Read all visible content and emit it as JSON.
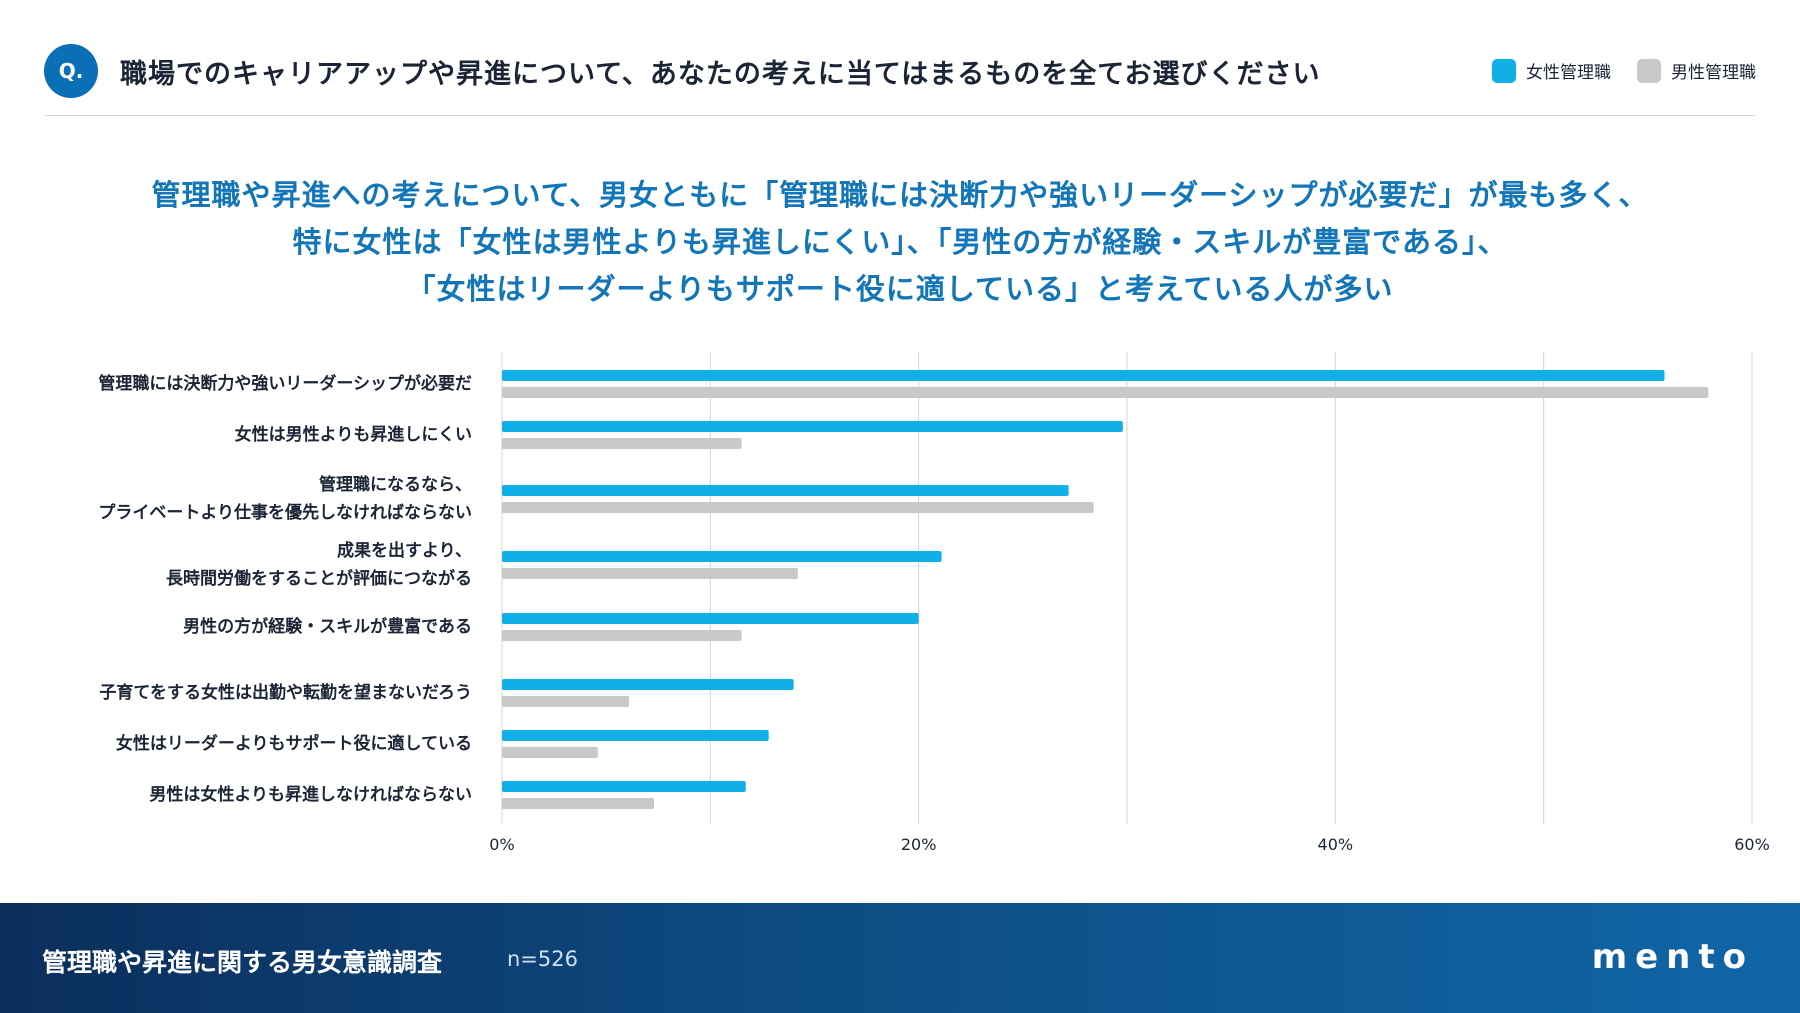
{
  "header": {
    "badge": "Q.",
    "question": "職場でのキャリアアップや昇進について、あなたの考えに当てはまるものを全てお選びください"
  },
  "legend": [
    {
      "label": "女性管理職",
      "color": "#0fb0e8"
    },
    {
      "label": "男性管理職",
      "color": "#c8c8c8"
    }
  ],
  "headline": [
    "管理職や昇進への考えについて、男女ともに「管理職には決断力や強いリーダーシップが必要だ」が最も多く、",
    "特に女性は「女性は男性よりも昇進しにくい」、「男性の方が経験・スキルが豊富である」、",
    "「女性はリーダーよりもサポート役に適している」と考えている人が多い"
  ],
  "chart_data": {
    "type": "bar",
    "orientation": "horizontal",
    "categories": [
      [
        "管理職には決断力や強いリーダーシップが必要だ"
      ],
      [
        "女性は男性よりも昇進しにくい"
      ],
      [
        "管理職になるなら、",
        "プライベートより仕事を優先しなければならない"
      ],
      [
        "成果を出すより、",
        "長時間労働をすることが評価につながる"
      ],
      [
        "男性の方が経験・スキルが豊富である"
      ],
      [
        "子育てをする女性は出勤や転勤を望まないだろう"
      ],
      [
        "女性はリーダーよりもサポート役に適している"
      ],
      [
        "男性は女性よりも昇進しなければならない"
      ]
    ],
    "series": [
      {
        "name": "女性管理職",
        "color": "#0fb0e8",
        "values": [
          55.8,
          29.8,
          27.2,
          21.1,
          20.0,
          14.0,
          12.8,
          11.7
        ]
      },
      {
        "name": "男性管理職",
        "color": "#c8c8c8",
        "values": [
          57.9,
          11.5,
          28.4,
          14.2,
          11.5,
          6.1,
          4.6,
          7.3
        ]
      }
    ],
    "xlim": [
      0,
      60
    ],
    "xticks": [
      "0%",
      "20%",
      "40%",
      "60%"
    ],
    "grid": true
  },
  "footer": {
    "title": "管理職や昇進に関する男女意識調査",
    "n": "n=526",
    "logo": "mento"
  }
}
